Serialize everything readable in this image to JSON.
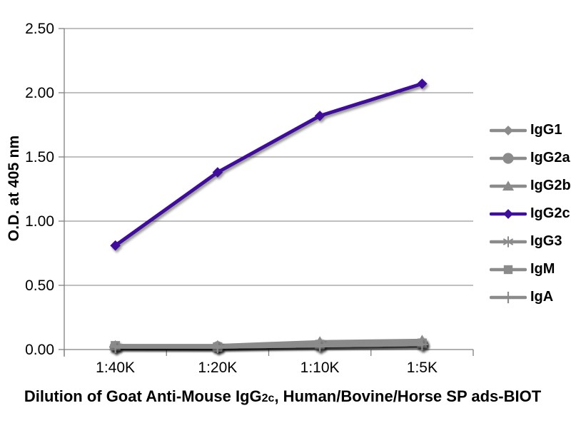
{
  "chart_data": {
    "type": "line",
    "ylabel": "O.D. at 405 nm",
    "xlabel_prefix": "Dilution of Goat Anti-Mouse IgG",
    "xlabel_subscript": "2c",
    "xlabel_suffix": ", Human/Bovine/Horse SP ads-BIOT",
    "categories": [
      "1:40K",
      "1:20K",
      "1:10K",
      "1:5K"
    ],
    "ylim": [
      0,
      2.5
    ],
    "ytick_step": 0.5,
    "ytick_labels": [
      "0.00",
      "0.50",
      "1.00",
      "1.50",
      "2.00",
      "2.50"
    ],
    "grid": "horizontal-only",
    "legend_position": "right",
    "axis_color": "#808080",
    "default_series_color": "#8b8b8b",
    "accent_color": "#3f0f9b",
    "series": [
      {
        "name": "IgG1",
        "marker": "diamond",
        "color": "#8b8b8b",
        "values": [
          0.02,
          0.02,
          0.04,
          0.05
        ]
      },
      {
        "name": "IgG2a",
        "marker": "circle",
        "color": "#8b8b8b",
        "values": [
          0.02,
          0.02,
          0.03,
          0.04
        ]
      },
      {
        "name": "IgG2b",
        "marker": "triangle",
        "color": "#8b8b8b",
        "values": [
          0.03,
          0.03,
          0.06,
          0.07
        ]
      },
      {
        "name": "IgG2c",
        "marker": "diamond",
        "color": "#3f0f9b",
        "values": [
          0.81,
          1.38,
          1.82,
          2.07
        ]
      },
      {
        "name": "IgG3",
        "marker": "asterisk",
        "color": "#8b8b8b",
        "values": [
          0.02,
          0.02,
          0.03,
          0.04
        ]
      },
      {
        "name": "IgM",
        "marker": "square",
        "color": "#8b8b8b",
        "values": [
          0.03,
          0.02,
          0.04,
          0.05
        ]
      },
      {
        "name": "IgA",
        "marker": "plus",
        "color": "#8b8b8b",
        "values": [
          0.02,
          0.02,
          0.03,
          0.04
        ]
      }
    ]
  }
}
